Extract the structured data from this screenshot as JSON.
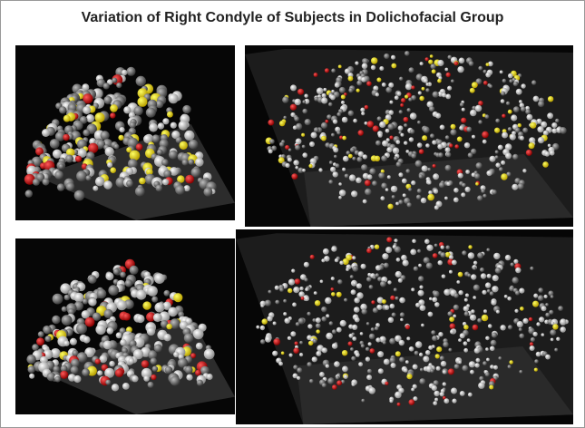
{
  "title": "Variation of Right Condyle of Subjects in Dolichofacial Group"
}
